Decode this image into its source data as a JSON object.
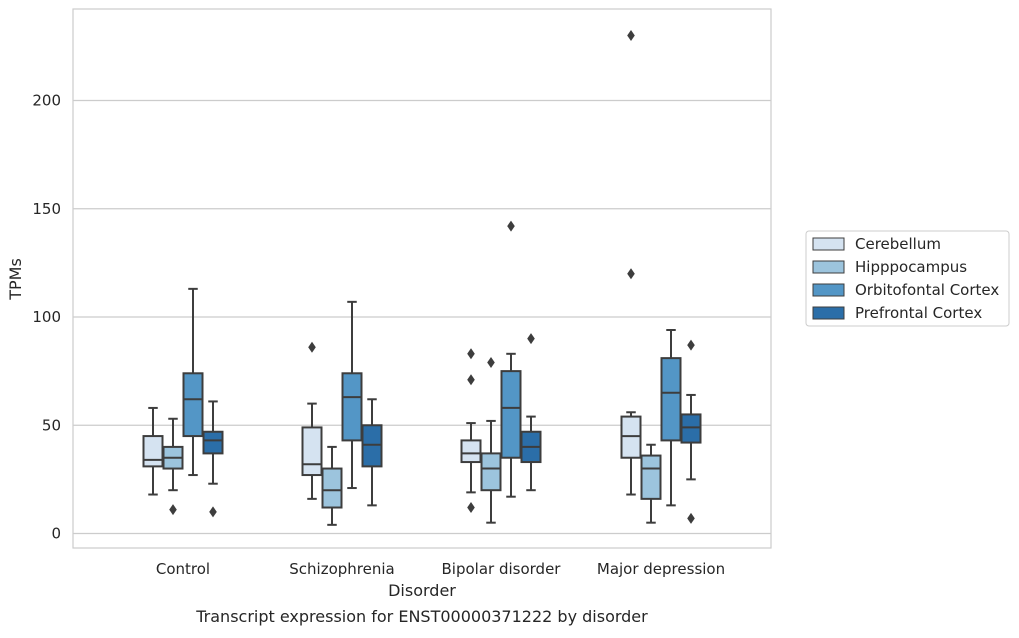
{
  "chart_data": {
    "type": "box",
    "title": "",
    "caption": "Transcript expression for ENST00000371222 by disorder",
    "xlabel": "Disorder",
    "ylabel": "TPMs",
    "ylim": [
      -6,
      231
    ],
    "yticks": [
      0,
      50,
      100,
      150,
      200
    ],
    "grid": "horizontal",
    "legend_position": "right",
    "categories": [
      "Control",
      "Schizophrenia",
      "Bipolar disorder",
      "Major depression"
    ],
    "series": [
      {
        "name": "Cerebellum",
        "color": "#d5e3f1",
        "boxes": [
          {
            "whisker_low": 18,
            "q1": 31,
            "median": 34,
            "q3": 45,
            "whisker_high": 58,
            "outliers": []
          },
          {
            "whisker_low": 16,
            "q1": 27,
            "median": 32,
            "q3": 49,
            "whisker_high": 60,
            "outliers": [
              86
            ]
          },
          {
            "whisker_low": 19,
            "q1": 33,
            "median": 37,
            "q3": 43,
            "whisker_high": 51,
            "outliers": [
              83,
              71,
              12
            ]
          },
          {
            "whisker_low": 18,
            "q1": 35,
            "median": 45,
            "q3": 54,
            "whisker_high": 56,
            "outliers": [
              230,
              120
            ]
          }
        ]
      },
      {
        "name": "Hipppocampus",
        "color": "#9cc4dd",
        "boxes": [
          {
            "whisker_low": 20,
            "q1": 30,
            "median": 35,
            "q3": 40,
            "whisker_high": 53,
            "outliers": [
              11
            ]
          },
          {
            "whisker_low": 4,
            "q1": 12,
            "median": 20,
            "q3": 30,
            "whisker_high": 40,
            "outliers": []
          },
          {
            "whisker_low": 5,
            "q1": 20,
            "median": 30,
            "q3": 37,
            "whisker_high": 52,
            "outliers": [
              79
            ]
          },
          {
            "whisker_low": 5,
            "q1": 16,
            "median": 30,
            "q3": 36,
            "whisker_high": 41,
            "outliers": []
          }
        ]
      },
      {
        "name": "Orbitofontal Cortex",
        "color": "#5396c6",
        "boxes": [
          {
            "whisker_low": 27,
            "q1": 45,
            "median": 62,
            "q3": 74,
            "whisker_high": 113,
            "outliers": []
          },
          {
            "whisker_low": 21,
            "q1": 43,
            "median": 63,
            "q3": 74,
            "whisker_high": 107,
            "outliers": []
          },
          {
            "whisker_low": 17,
            "q1": 35,
            "median": 58,
            "q3": 75,
            "whisker_high": 83,
            "outliers": [
              142
            ]
          },
          {
            "whisker_low": 13,
            "q1": 43,
            "median": 65,
            "q3": 81,
            "whisker_high": 94,
            "outliers": []
          }
        ]
      },
      {
        "name": "Prefrontal Cortex",
        "color": "#2b6ea8",
        "boxes": [
          {
            "whisker_low": 23,
            "q1": 37,
            "median": 43,
            "q3": 47,
            "whisker_high": 61,
            "outliers": [
              10
            ]
          },
          {
            "whisker_low": 13,
            "q1": 31,
            "median": 41,
            "q3": 50,
            "whisker_high": 62,
            "outliers": []
          },
          {
            "whisker_low": 20,
            "q1": 33,
            "median": 40,
            "q3": 47,
            "whisker_high": 54,
            "outliers": [
              90
            ]
          },
          {
            "whisker_low": 25,
            "q1": 42,
            "median": 49,
            "q3": 55,
            "whisker_high": 64,
            "outliers": [
              87,
              7
            ]
          }
        ]
      }
    ]
  }
}
